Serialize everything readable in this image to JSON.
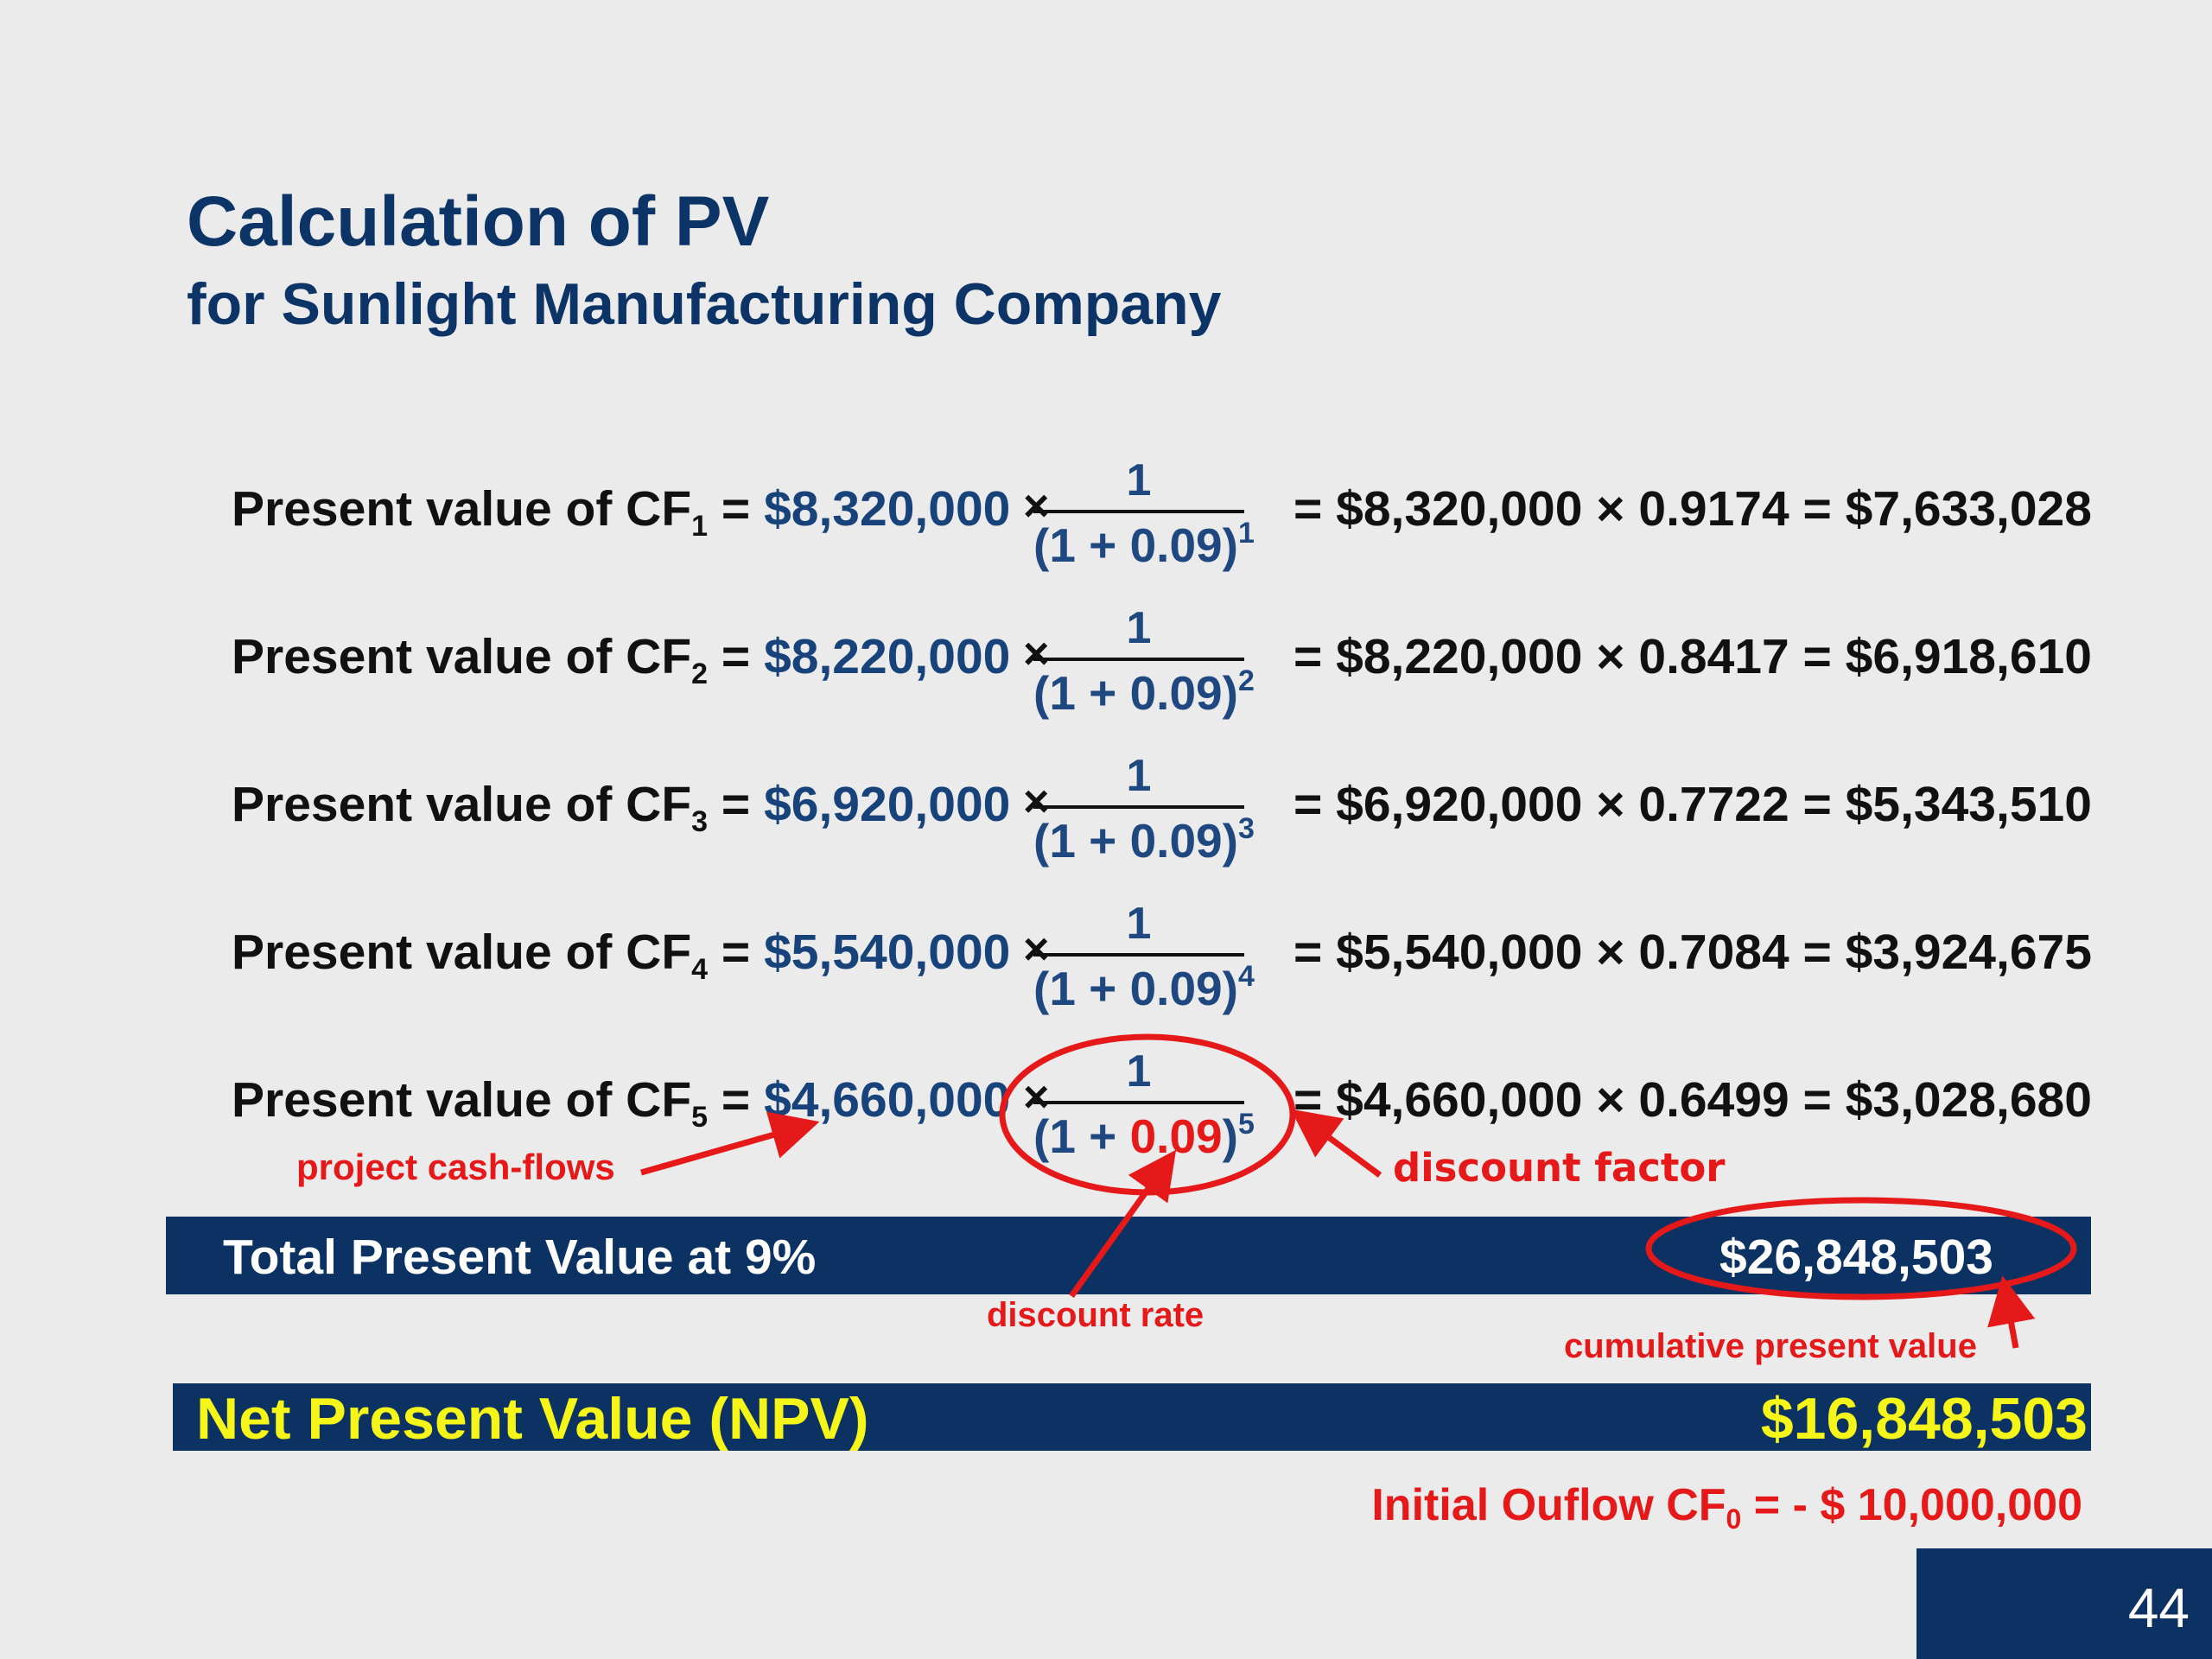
{
  "title": "Calculation of PV",
  "subtitle": "for Sunlight Manufacturing Company",
  "common": {
    "label_prefix": "Present value of CF",
    "equals": "=",
    "times": "×",
    "numerator": "1",
    "den_open": "(1 + ",
    "rate": "0.09",
    "den_close": ")"
  },
  "rows": [
    {
      "sub": "1",
      "cash": "$8,320,000",
      "exp": "1",
      "rhs": "= $8,320,000 × 0.9174 = $7,633,028"
    },
    {
      "sub": "2",
      "cash": "$8,220,000",
      "exp": "2",
      "rhs": "= $8,220,000 × 0.8417 = $6,918,610"
    },
    {
      "sub": "3",
      "cash": "$6,920,000",
      "exp": "3",
      "rhs": "= $6,920,000 × 0.7722 = $5,343,510"
    },
    {
      "sub": "4",
      "cash": "$5,540,000",
      "exp": "4",
      "rhs": "= $5,540,000 × 0.7084 = $3,924,675"
    },
    {
      "sub": "5",
      "cash": "$4,660,000",
      "exp": "5",
      "rhs": "= $4,660,000 × 0.6499 = $3,028,680"
    }
  ],
  "total": {
    "label": "Total Present Value at 9%",
    "value": "$26,848,503"
  },
  "npv": {
    "label": "Net Present Value (NPV)",
    "value": "$16,848,503"
  },
  "outflow": {
    "label": "Initial Ouflow CF",
    "sub": "0",
    "rest": " =  - $ 10,000,000"
  },
  "annotations": {
    "cash_flows": "project cash-flows",
    "discount_factor": "discount factor",
    "discount_rate": "discount rate",
    "cumulative": "cumulative present value"
  },
  "page_number": "44",
  "colors": {
    "navy": "#0c3263",
    "title": "#0d3466",
    "red": "#e51919",
    "yellow": "#f5f51a",
    "background": "#ebebeb"
  }
}
